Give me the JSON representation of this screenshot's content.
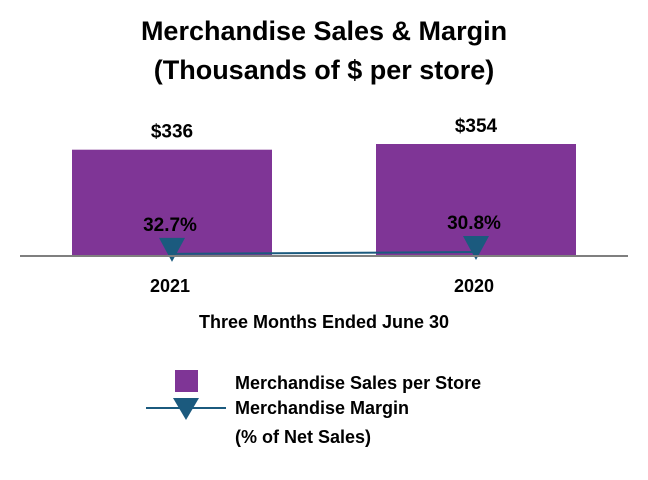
{
  "chart_data": {
    "type": "bar",
    "title": [
      "Merchandise Sales & Margin",
      "(Thousands of $ per store)"
    ],
    "xlabel": "Three Months Ended June 30",
    "categories": [
      "2021",
      "2020"
    ],
    "series": [
      {
        "name": "Merchandise Sales per Store",
        "kind": "bar",
        "values": [
          336,
          354
        ],
        "labels": [
          "$336",
          "$354"
        ],
        "color": "#7f3596"
      },
      {
        "name": "Merchandise Margin",
        "name_line2": "(% of Net Sales)",
        "kind": "line",
        "marker": "triangle-down",
        "values": [
          32.7,
          30.8
        ],
        "labels": [
          "32.7%",
          "30.8%"
        ],
        "color": "#1b5a7e"
      }
    ],
    "grid": false,
    "legend_position": "bottom"
  }
}
